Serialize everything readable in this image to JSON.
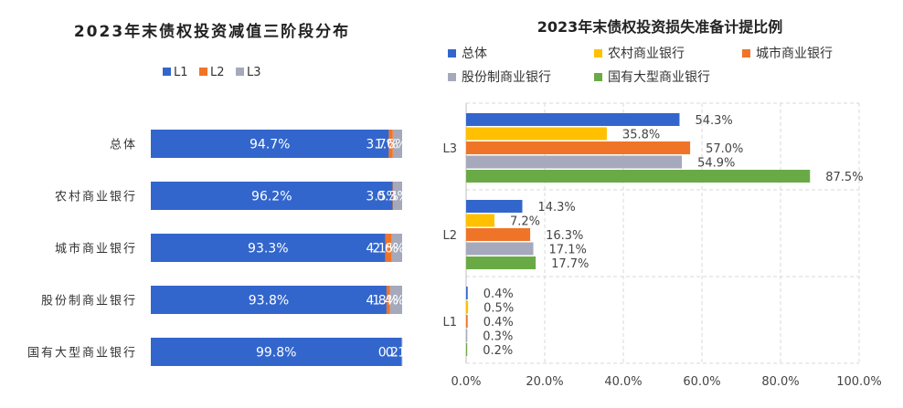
{
  "chart_data": [
    {
      "type": "bar",
      "stacked": true,
      "orientation": "horizontal",
      "title": "2023年末债权投资减值三阶段分布",
      "legend_position": "top",
      "categories": [
        "总体",
        "农村商业银行",
        "城市商业银行",
        "股份制商业银行",
        "国有大型商业银行"
      ],
      "series": [
        {
          "name": "L1",
          "color": "#3366CC",
          "values": [
            94.7,
            96.2,
            93.3,
            93.8,
            99.8
          ],
          "labels": [
            "94.7%",
            "96.2%",
            "93.3%",
            "93.8%",
            "99.8%"
          ]
        },
        {
          "name": "L2",
          "color": "#F07427",
          "values": [
            1.6,
            0.3,
            2.6,
            1.4,
            0.1
          ],
          "labels": [
            "1.6%",
            "0.3%",
            "2.6%",
            "1.4%",
            "0.1%"
          ]
        },
        {
          "name": "L3",
          "color": "#A5A9BB",
          "values": [
            3.7,
            3.5,
            4.1,
            4.8,
            0.2
          ],
          "labels": [
            "3.7%",
            "3.5%",
            "4.1%",
            "4.8%",
            "0.2"
          ]
        }
      ]
    },
    {
      "type": "bar",
      "orientation": "horizontal",
      "title": "2023年末债权投资损失准备计提比例",
      "legend_position": "top",
      "categories": [
        "L3",
        "L2",
        "L1"
      ],
      "xlim": [
        0,
        100
      ],
      "xticks": [
        "0.0%",
        "20.0%",
        "40.0%",
        "60.0%",
        "80.0%",
        "100.0%"
      ],
      "grid": true,
      "series": [
        {
          "name": "总体",
          "color": "#3366CC",
          "values": [
            54.3,
            14.3,
            0.4
          ],
          "labels": [
            "54.3%",
            "14.3%",
            "0.4%"
          ]
        },
        {
          "name": "农村商业银行",
          "color": "#FFC000",
          "values": [
            35.8,
            7.2,
            0.5
          ],
          "labels": [
            "35.8%",
            "7.2%",
            "0.5%"
          ]
        },
        {
          "name": "城市商业银行",
          "color": "#F07427",
          "values": [
            57.0,
            16.3,
            0.4
          ],
          "labels": [
            "57.0%",
            "16.3%",
            "0.4%"
          ]
        },
        {
          "name": "股份制商业银行",
          "color": "#A5A9BB",
          "values": [
            54.9,
            17.1,
            0.3
          ],
          "labels": [
            "54.9%",
            "17.1%",
            "0.3%"
          ]
        },
        {
          "name": "国有大型商业银行",
          "color": "#6AAA46",
          "values": [
            87.5,
            17.7,
            0.2
          ],
          "labels": [
            "87.5%",
            "17.7%",
            "0.2%"
          ]
        }
      ]
    }
  ]
}
